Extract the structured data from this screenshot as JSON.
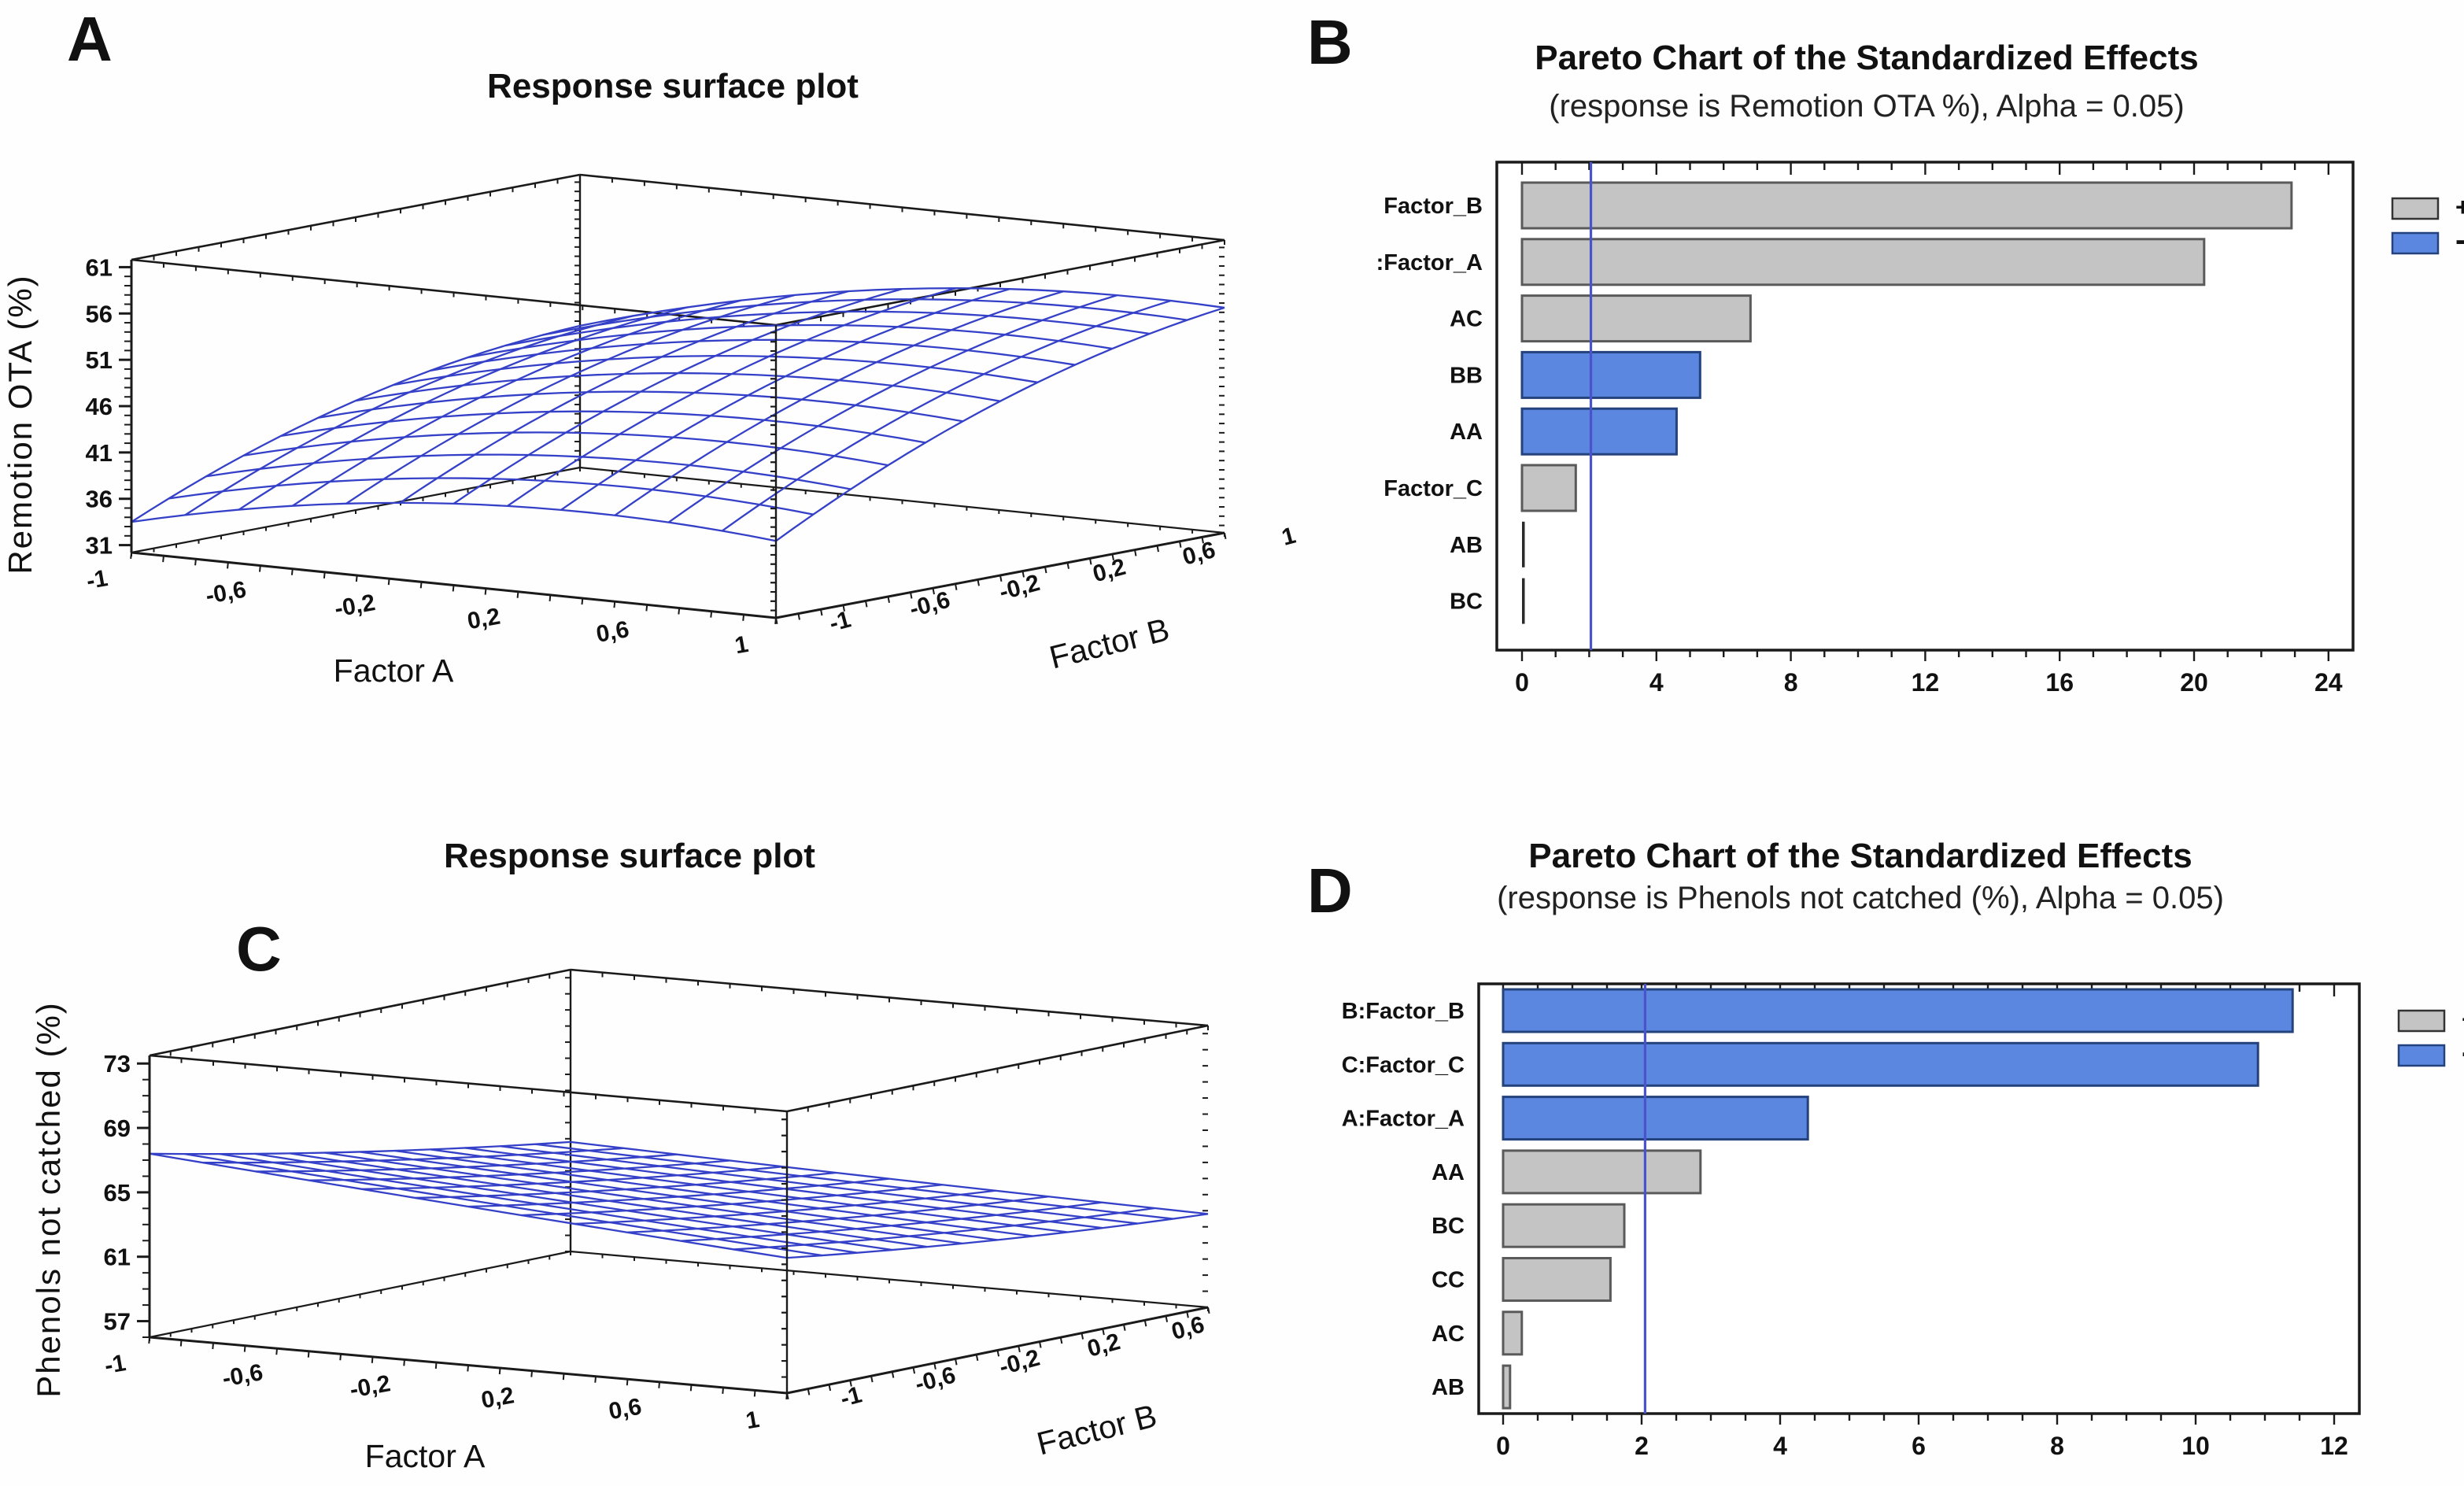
{
  "figure": {
    "background": "#fefefe"
  },
  "colors": {
    "text": "#111111",
    "edge": "#1a1a1a",
    "mesh": "#3540c8",
    "positive_bar": "#c4c4c4",
    "positive_border": "#5a5a5a",
    "negative_bar": "#5b87e0",
    "negative_border": "#24427c",
    "tiny_bar": "#2a2a2a",
    "reference_line": "#4853cc",
    "box_border": "#1a1a1a"
  },
  "legend": {
    "positive_label": "+",
    "negative_label": "-"
  },
  "chart_data": [
    {
      "id": "A",
      "type": "surface3d",
      "title": "Response surface plot",
      "xlabel": "Factor A",
      "ylabel": "Factor B",
      "zlabel": "Remotion OTA (%)",
      "x_ticks": [
        -1,
        -0.6,
        -0.2,
        0.2,
        0.6,
        1
      ],
      "y_ticks": [
        -1,
        -0.6,
        -0.2,
        0.2,
        0.6,
        1
      ],
      "z_ticks": [
        31,
        36,
        41,
        46,
        51,
        56,
        61
      ],
      "z_range": [
        30.2,
        61.8
      ],
      "grid_lines": 13,
      "model": {
        "c0": 48.5,
        "ca": 3.5,
        "cb": 7.0,
        "caa": -3.0,
        "cbb": -2.5,
        "cab": 1.0
      },
      "surface_corner_values": {
        "A-1_B-1": 33.5,
        "A1_B-1": 38.5,
        "A-1_B1": 45.5,
        "A1_B1": 54.5
      }
    },
    {
      "id": "B",
      "type": "bar",
      "orientation": "horizontal",
      "title": "Pareto Chart of the Standardized Effects",
      "subtitle": "(response is Remotion OTA %), Alpha = 0.05)",
      "categories": [
        "Factor_B",
        ":Factor_A",
        "AC",
        "BB",
        "AA",
        "Factor_C",
        "AB",
        "BC"
      ],
      "values": [
        22.9,
        20.3,
        6.8,
        5.3,
        4.6,
        1.6,
        0.07,
        0.07
      ],
      "signs": [
        "+",
        "+",
        "+",
        "-",
        "-",
        "+",
        "+",
        "+"
      ],
      "x_ticks": [
        0,
        4,
        8,
        12,
        16,
        20,
        24
      ],
      "x_minor_step": 1,
      "xlim": [
        0,
        24.7
      ],
      "reference_line": 2.05,
      "legend_entries": [
        {
          "label": "+",
          "color_key": "positive_bar"
        },
        {
          "label": "-",
          "color_key": "negative_bar"
        }
      ]
    },
    {
      "id": "C",
      "type": "surface3d",
      "title": "Response surface plot",
      "xlabel": "Factor A",
      "ylabel": "Factor B",
      "zlabel": "Phenols not catched (%)",
      "x_ticks": [
        -1,
        -0.6,
        -0.2,
        0.2,
        0.6,
        1
      ],
      "y_ticks": [
        -1,
        -0.6,
        -0.2,
        0.2,
        0.6
      ],
      "z_ticks": [
        57,
        61,
        65,
        69,
        73
      ],
      "z_range": [
        56.0,
        73.5
      ],
      "grid_lines": 13,
      "model": {
        "c0": 63.8,
        "ca": -1.0,
        "cb": -1.8,
        "caa": 0.05,
        "cbb": 0.25,
        "cab": 0.5
      },
      "surface_corner_values": {
        "A-1_B-1": 67.4,
        "A1_B-1": 64.4,
        "A-1_B1": 62.8,
        "A1_B1": 61.8
      }
    },
    {
      "id": "D",
      "type": "bar",
      "orientation": "horizontal",
      "title": "Pareto Chart of the Standardized Effects",
      "subtitle": "(response is Phenols not catched (%), Alpha = 0.05)",
      "categories": [
        "B:Factor_B",
        "C:Factor_C",
        "A:Factor_A",
        "AA",
        "BC",
        "CC",
        "AC",
        "AB"
      ],
      "values": [
        11.4,
        10.9,
        4.4,
        2.85,
        1.75,
        1.55,
        0.27,
        0.1
      ],
      "signs": [
        "-",
        "-",
        "-",
        "+",
        "+",
        "+",
        "+",
        "+"
      ],
      "x_ticks": [
        0,
        2,
        4,
        6,
        8,
        10,
        12
      ],
      "x_minor_step": 0.5,
      "xlim": [
        0,
        12.36
      ],
      "reference_line": 2.05,
      "legend_entries": [
        {
          "label": "+",
          "color_key": "positive_bar"
        },
        {
          "label": "-",
          "color_key": "negative_bar"
        }
      ]
    }
  ]
}
